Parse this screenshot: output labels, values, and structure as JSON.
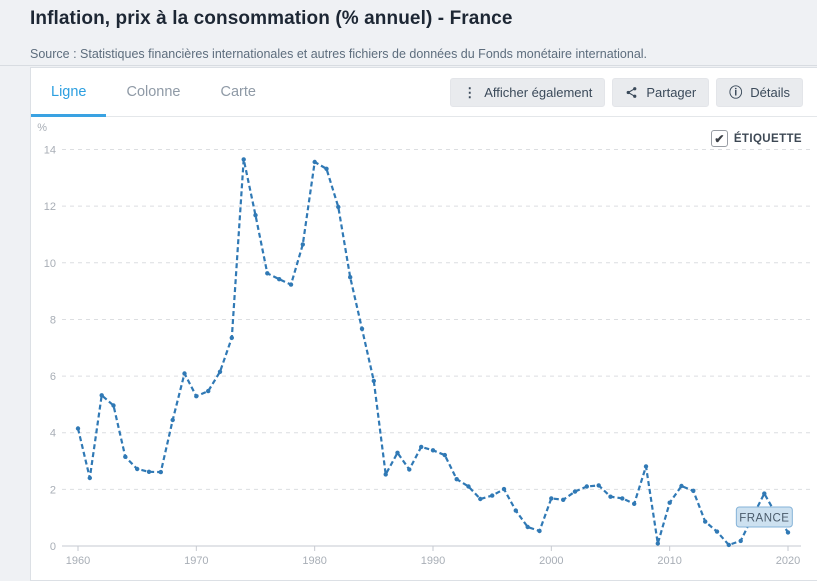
{
  "header": {
    "title": "Inflation, prix à la consommation (% annuel) - France",
    "source": "Source : Statistiques financières internationales et autres fichiers de données du Fonds monétaire international."
  },
  "tabs": [
    {
      "label": "Ligne",
      "active": true
    },
    {
      "label": "Colonne",
      "active": false
    },
    {
      "label": "Carte",
      "active": false
    }
  ],
  "actions": {
    "show_also": "Afficher également",
    "share": "Partager",
    "details": "Détails"
  },
  "icons": {
    "kebab": "⋮",
    "info": "ⓘ",
    "check": "✔"
  },
  "etiquette": {
    "label": "ÉTIQUETTE",
    "checked": true
  },
  "colors": {
    "accent_blue": "#2c9fe0",
    "line_blue": "#3079b5",
    "label_box_fill": "#cde1f0",
    "label_box_border": "#85b3d8",
    "grid": "#dcdee1",
    "axis": "#c6cad0"
  },
  "chart_data": {
    "type": "line",
    "title": "Inflation, prix à la consommation (% annuel) - France",
    "xlabel": "",
    "ylabel": "%",
    "ylim": [
      0,
      14
    ],
    "yticks": [
      0,
      2,
      4,
      6,
      8,
      10,
      12,
      14
    ],
    "xticks": [
      1960,
      1970,
      1980,
      1990,
      2000,
      2010,
      2020
    ],
    "grid": true,
    "legend_position": "none",
    "series_label": {
      "text": "FRANCE",
      "year": 2018
    },
    "x": [
      1960,
      1961,
      1962,
      1963,
      1964,
      1965,
      1966,
      1967,
      1968,
      1969,
      1970,
      1971,
      1972,
      1973,
      1974,
      1975,
      1976,
      1977,
      1978,
      1979,
      1980,
      1981,
      1982,
      1983,
      1984,
      1985,
      1986,
      1987,
      1988,
      1989,
      1990,
      1991,
      1992,
      1993,
      1994,
      1995,
      1996,
      1997,
      1998,
      1999,
      2000,
      2001,
      2002,
      2003,
      2004,
      2005,
      2006,
      2007,
      2008,
      2009,
      2010,
      2011,
      2012,
      2013,
      2014,
      2015,
      2016,
      2017,
      2018,
      2019,
      2020
    ],
    "series": [
      {
        "name": "FRANCE",
        "color": "#3079b5",
        "values": [
          4.15,
          2.4,
          5.32,
          4.96,
          3.15,
          2.72,
          2.62,
          2.61,
          4.45,
          6.09,
          5.29,
          5.47,
          6.15,
          7.35,
          13.65,
          11.68,
          9.63,
          9.42,
          9.23,
          10.65,
          13.56,
          13.32,
          11.97,
          9.49,
          7.67,
          5.83,
          2.53,
          3.29,
          2.7,
          3.5,
          3.38,
          3.21,
          2.36,
          2.1,
          1.66,
          1.78,
          2.01,
          1.25,
          0.67,
          0.53,
          1.68,
          1.63,
          1.92,
          2.1,
          2.14,
          1.74,
          1.68,
          1.49,
          2.81,
          0.09,
          1.53,
          2.12,
          1.95,
          0.86,
          0.51,
          0.04,
          0.18,
          1.03,
          1.85,
          1.11,
          0.48
        ]
      }
    ]
  }
}
